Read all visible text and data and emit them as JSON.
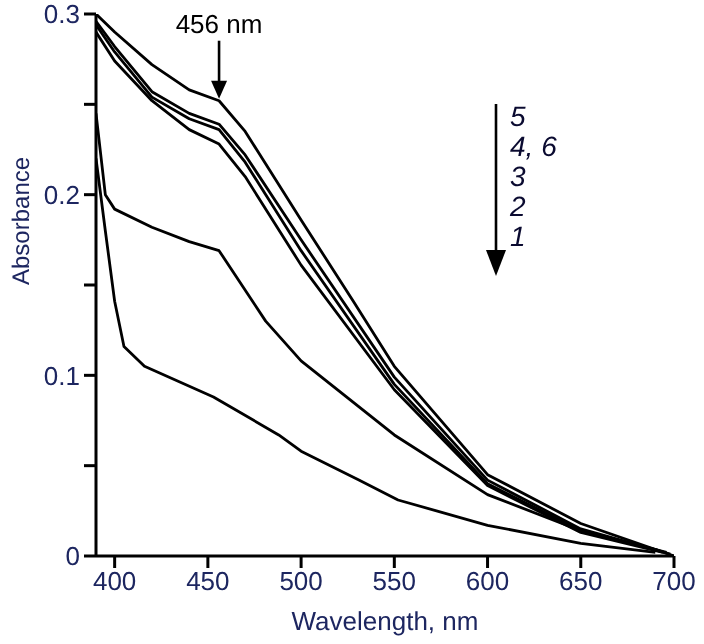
{
  "chart_data": {
    "type": "line",
    "xlabel": "Wavelength, nm",
    "ylabel": "Absorbance",
    "xlim": [
      390,
      700
    ],
    "xticks": [
      400,
      450,
      500,
      550,
      600,
      650,
      700
    ],
    "ylim": [
      0,
      0.3
    ],
    "yticks": [
      0,
      {
        "value": 0.05,
        "label": null
      },
      0.1,
      {
        "value": 0.15,
        "label": null
      },
      0.2,
      {
        "value": 0.25,
        "label": null
      },
      0.3
    ],
    "grid": false,
    "legend": false,
    "marker": "none",
    "line_style": "solid",
    "annotations": [
      {
        "text": "456 nm",
        "x": 456,
        "y": 0.252
      },
      "5",
      "4, 6",
      "3",
      "2",
      "1"
    ],
    "series": [
      {
        "color": "#000000",
        "x": [
          390,
          400,
          420,
          440,
          456,
          470,
          500,
          528,
          550,
          600,
          650,
          700
        ],
        "values": [
          0.3,
          0.29,
          0.272,
          0.258,
          0.252,
          0.235,
          0.186,
          0.141,
          0.105,
          0.045,
          0.018,
          0
        ]
      },
      {
        "color": "#000000",
        "x": [
          390,
          400,
          420,
          440,
          456,
          470,
          500,
          550,
          600,
          650,
          698
        ],
        "values": [
          0.296,
          0.282,
          0.257,
          0.245,
          0.239,
          0.222,
          0.175,
          0.099,
          0.042,
          0.015,
          0.001
        ]
      },
      {
        "color": "#000000",
        "x": [
          390,
          400,
          420,
          440,
          456,
          470,
          500,
          550,
          600,
          650,
          696
        ],
        "values": [
          0.294,
          0.279,
          0.254,
          0.242,
          0.236,
          0.218,
          0.169,
          0.095,
          0.04,
          0.014,
          0.002
        ]
      },
      {
        "color": "#000000",
        "x": [
          390,
          400,
          420,
          440,
          456,
          470,
          500,
          550,
          600,
          650,
          694
        ],
        "values": [
          0.29,
          0.274,
          0.252,
          0.236,
          0.228,
          0.21,
          0.161,
          0.092,
          0.039,
          0.013,
          0.002
        ]
      },
      {
        "color": "#000000",
        "x": [
          390,
          395,
          400,
          420,
          440,
          456,
          481,
          500,
          550,
          600,
          650,
          692
        ],
        "values": [
          0.245,
          0.2,
          0.192,
          0.182,
          0.174,
          0.169,
          0.13,
          0.108,
          0.067,
          0.034,
          0.014,
          0.003
        ]
      },
      {
        "color": "#000000",
        "x": [
          390,
          395,
          400,
          405,
          416,
          453,
          488,
          500,
          531,
          552,
          600,
          650,
          690
        ],
        "values": [
          0.22,
          0.18,
          0.141,
          0.116,
          0.105,
          0.088,
          0.067,
          0.058,
          0.042,
          0.031,
          0.017,
          0.007,
          0.002
        ]
      }
    ]
  }
}
